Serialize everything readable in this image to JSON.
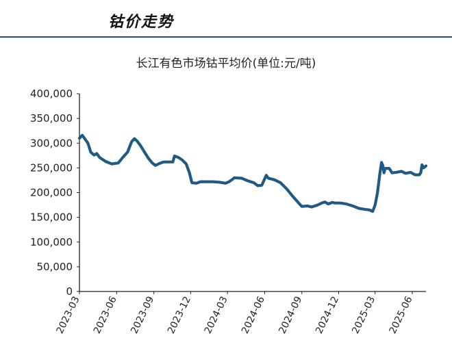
{
  "section": {
    "title": "钴价走势"
  },
  "chart_data": {
    "type": "line",
    "title": "长江有色市场钴平均价(单位:元/吨)",
    "xlabel": "",
    "ylabel": "",
    "ylim": [
      0,
      400000
    ],
    "yticks": [
      "0",
      "50,000",
      "100,000",
      "150,000",
      "200,000",
      "250,000",
      "300,000",
      "350,000",
      "400,000"
    ],
    "xticks": [
      "2023-03",
      "2023-06",
      "2023-09",
      "2023-12",
      "2024-03",
      "2024-06",
      "2024-09",
      "2024-12",
      "2025-03",
      "2025-06"
    ],
    "grid": false,
    "line_color": "#1f5a84",
    "series": [
      {
        "points": [
          [
            "2023-03-01",
            310000
          ],
          [
            "2023-03-08",
            316000
          ],
          [
            "2023-03-15",
            308000
          ],
          [
            "2023-03-22",
            300000
          ],
          [
            "2023-03-29",
            282000
          ],
          [
            "2023-04-06",
            276000
          ],
          [
            "2023-04-13",
            279000
          ],
          [
            "2023-04-20",
            271000
          ],
          [
            "2023-05-05",
            263000
          ],
          [
            "2023-05-20",
            258000
          ],
          [
            "2023-06-05",
            260000
          ],
          [
            "2023-06-15",
            270000
          ],
          [
            "2023-06-28",
            282000
          ],
          [
            "2023-07-08",
            303000
          ],
          [
            "2023-07-15",
            309000
          ],
          [
            "2023-07-22",
            304000
          ],
          [
            "2023-07-30",
            295000
          ],
          [
            "2023-08-08",
            283000
          ],
          [
            "2023-08-18",
            270000
          ],
          [
            "2023-08-28",
            260000
          ],
          [
            "2023-09-05",
            255000
          ],
          [
            "2023-09-15",
            259000
          ],
          [
            "2023-09-25",
            262000
          ],
          [
            "2023-10-08",
            262000
          ],
          [
            "2023-10-18",
            262000
          ],
          [
            "2023-10-22",
            274000
          ],
          [
            "2023-11-01",
            271000
          ],
          [
            "2023-11-10",
            266000
          ],
          [
            "2023-11-20",
            258000
          ],
          [
            "2023-11-28",
            240000
          ],
          [
            "2023-12-04",
            220000
          ],
          [
            "2023-12-15",
            219000
          ],
          [
            "2023-12-25",
            222000
          ],
          [
            "2024-01-10",
            222000
          ],
          [
            "2024-01-25",
            222000
          ],
          [
            "2024-02-10",
            221000
          ],
          [
            "2024-02-25",
            219000
          ],
          [
            "2024-03-05",
            222000
          ],
          [
            "2024-03-12",
            226000
          ],
          [
            "2024-03-18",
            230000
          ],
          [
            "2024-04-05",
            229000
          ],
          [
            "2024-04-20",
            224000
          ],
          [
            "2024-05-05",
            220000
          ],
          [
            "2024-05-15",
            214000
          ],
          [
            "2024-05-25",
            215000
          ],
          [
            "2024-06-01",
            228000
          ],
          [
            "2024-06-05",
            235000
          ],
          [
            "2024-06-10",
            229000
          ],
          [
            "2024-06-25",
            226000
          ],
          [
            "2024-07-10",
            220000
          ],
          [
            "2024-07-25",
            208000
          ],
          [
            "2024-08-10",
            192000
          ],
          [
            "2024-08-25",
            178000
          ],
          [
            "2024-09-01",
            172000
          ],
          [
            "2024-09-15",
            173000
          ],
          [
            "2024-09-25",
            171000
          ],
          [
            "2024-10-10",
            175000
          ],
          [
            "2024-10-20",
            179000
          ],
          [
            "2024-10-28",
            181000
          ],
          [
            "2024-11-05",
            177000
          ],
          [
            "2024-11-15",
            180000
          ],
          [
            "2024-11-22",
            179000
          ],
          [
            "2024-12-05",
            179000
          ],
          [
            "2024-12-20",
            177000
          ],
          [
            "2025-01-05",
            173000
          ],
          [
            "2025-01-20",
            168000
          ],
          [
            "2025-02-05",
            166000
          ],
          [
            "2025-02-15",
            165000
          ],
          [
            "2025-02-23",
            162000
          ],
          [
            "2025-03-01",
            175000
          ],
          [
            "2025-03-07",
            200000
          ],
          [
            "2025-03-13",
            240000
          ],
          [
            "2025-03-17",
            261000
          ],
          [
            "2025-03-20",
            255000
          ],
          [
            "2025-03-23",
            240000
          ],
          [
            "2025-03-26",
            249000
          ],
          [
            "2025-04-05",
            249000
          ],
          [
            "2025-04-12",
            240000
          ],
          [
            "2025-04-22",
            241000
          ],
          [
            "2025-05-05",
            243000
          ],
          [
            "2025-05-15",
            239000
          ],
          [
            "2025-05-28",
            241000
          ],
          [
            "2025-06-08",
            236000
          ],
          [
            "2025-06-18",
            236000
          ],
          [
            "2025-06-22",
            240000
          ],
          [
            "2025-06-25",
            256000
          ],
          [
            "2025-06-29",
            250000
          ],
          [
            "2025-07-05",
            254000
          ]
        ]
      }
    ]
  }
}
